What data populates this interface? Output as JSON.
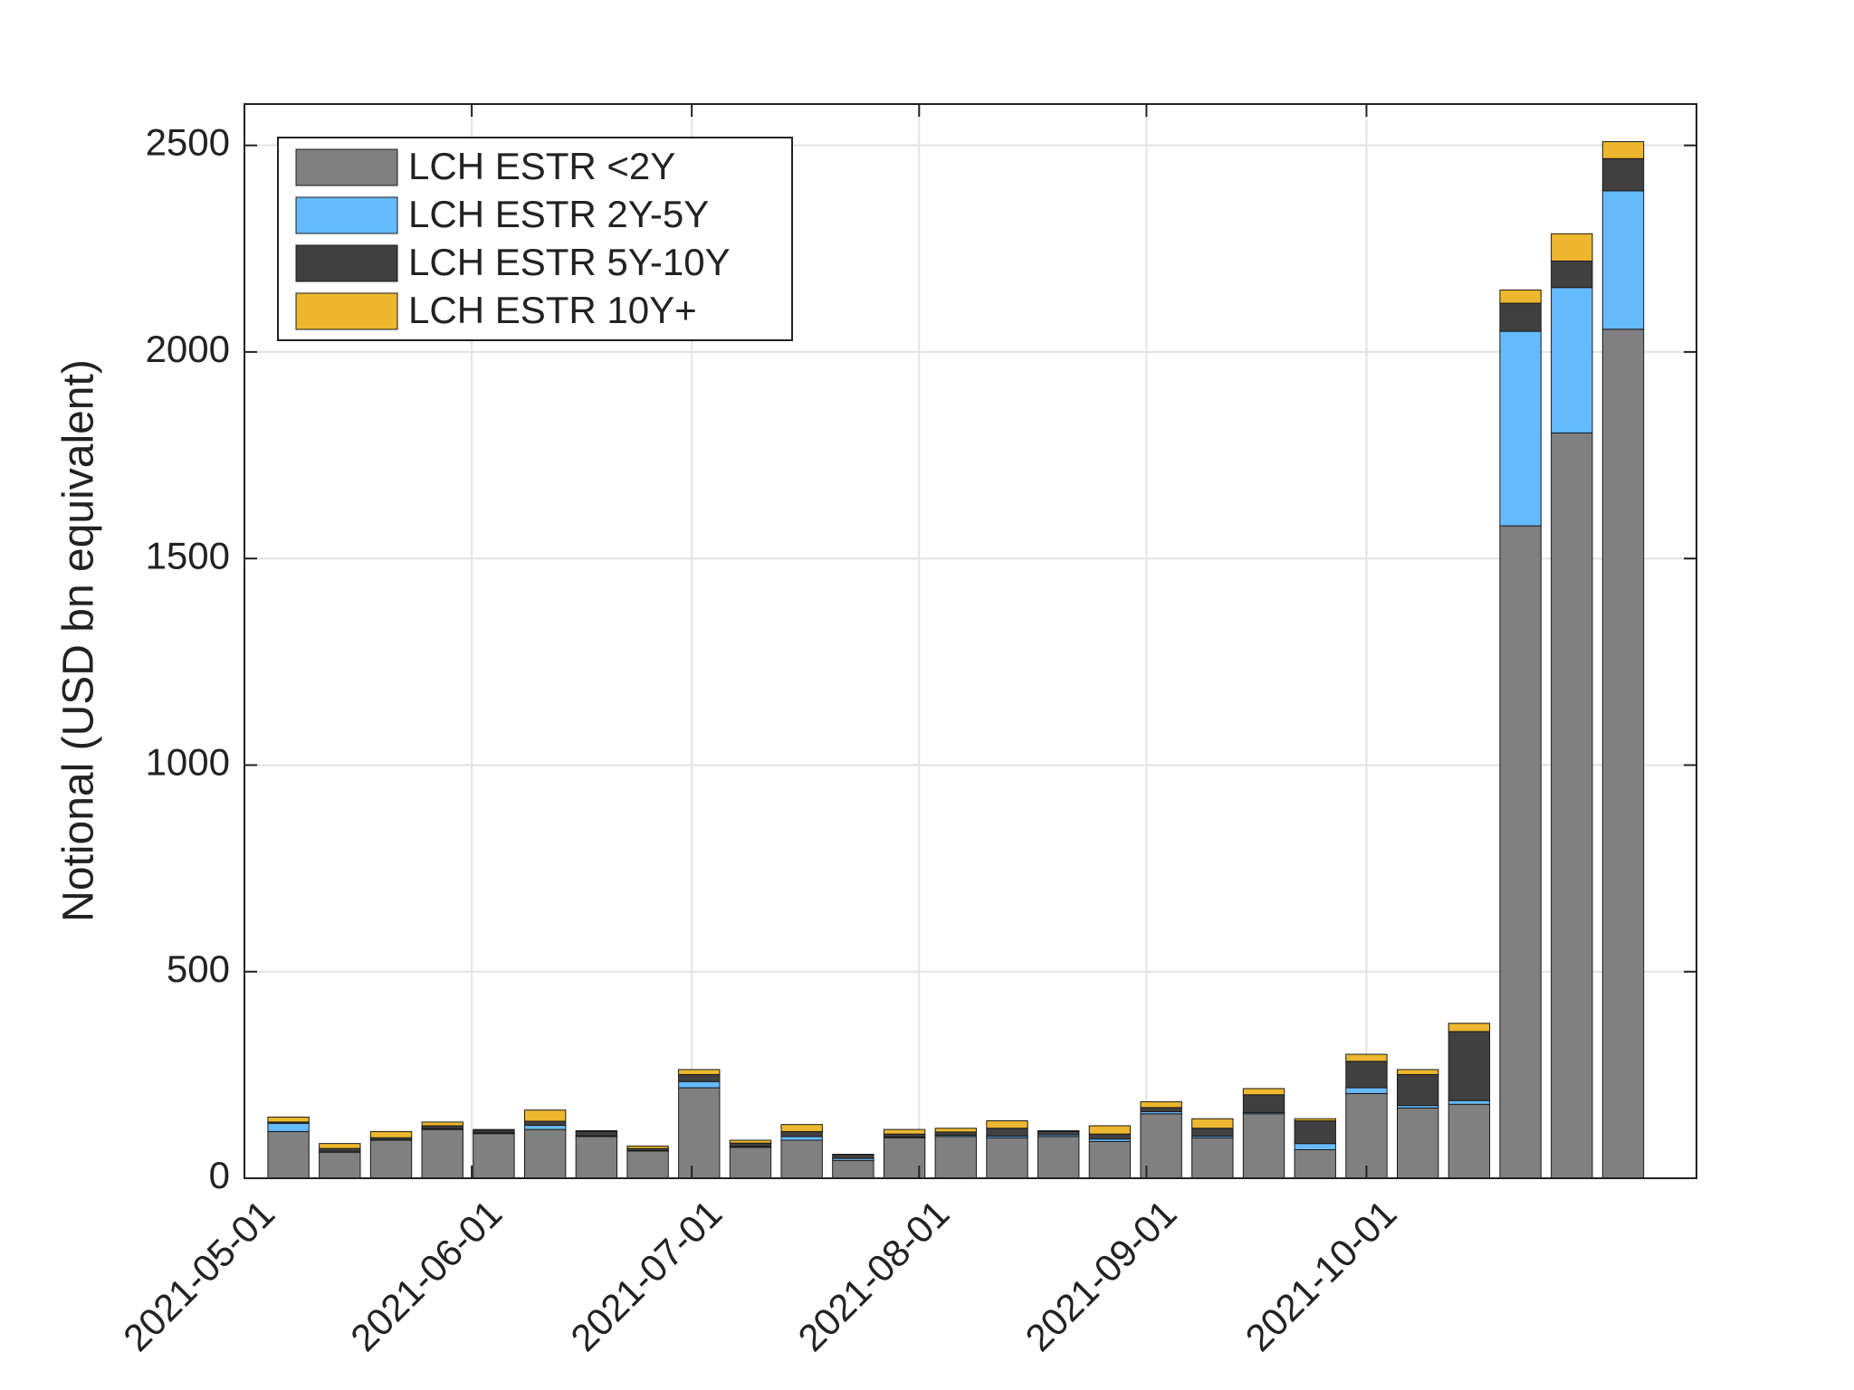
{
  "chart_data": {
    "type": "bar",
    "stacked": true,
    "y_label": "Notional (USD bn equivalent)",
    "x": [
      "2021-05-07",
      "2021-05-14",
      "2021-05-21",
      "2021-05-28",
      "2021-06-04",
      "2021-06-11",
      "2021-06-18",
      "2021-06-25",
      "2021-07-02",
      "2021-07-09",
      "2021-07-16",
      "2021-07-23",
      "2021-07-30",
      "2021-08-06",
      "2021-08-13",
      "2021-08-20",
      "2021-08-27",
      "2021-09-03",
      "2021-09-10",
      "2021-09-17",
      "2021-09-24",
      "2021-10-01",
      "2021-10-08",
      "2021-10-15",
      "2021-10-22",
      "2021-10-29",
      "2021-11-05"
    ],
    "series": [
      {
        "name": "LCH ESTR <2Y",
        "color": "#808080",
        "values": [
          113,
          63,
          92,
          118,
          108,
          118,
          101,
          66,
          219,
          75,
          92,
          43,
          98,
          101,
          98,
          101,
          89,
          156,
          98,
          156,
          69,
          205,
          170,
          179,
          1579,
          1804,
          2055
        ]
      },
      {
        "name": "LCH ESTR 2Y-5Y",
        "color": "#66bbff",
        "values": [
          20,
          1,
          1,
          2,
          2,
          10,
          2,
          1,
          15,
          2,
          9,
          5,
          2,
          3,
          4,
          4,
          6,
          5,
          4,
          3,
          15,
          14,
          6,
          9,
          471,
          352,
          335
        ]
      },
      {
        "name": "LCH ESTR 5Y-10Y",
        "color": "#404040",
        "values": [
          3,
          8,
          5,
          7,
          6,
          10,
          10,
          5,
          17,
          8,
          12,
          9,
          7,
          8,
          19,
          8,
          12,
          10,
          19,
          43,
          55,
          64,
          75,
          167,
          68,
          64,
          78
        ]
      },
      {
        "name": "LCH ESTR 10Y+",
        "color": "#edb82f",
        "values": [
          12,
          12,
          15,
          9,
          2,
          27,
          2,
          6,
          12,
          7,
          17,
          1,
          11,
          9,
          18,
          2,
          20,
          14,
          23,
          15,
          5,
          17,
          12,
          20,
          32,
          66,
          41
        ]
      }
    ],
    "xlim": [
      "2021-05-01",
      "2021-11-15"
    ],
    "xticks": [
      "2021-05-01",
      "2021-06-01",
      "2021-07-01",
      "2021-08-01",
      "2021-09-01",
      "2021-10-01"
    ],
    "ylim": [
      0,
      2600
    ],
    "yticks": [
      0,
      500,
      1000,
      1500,
      2000,
      2500
    ],
    "grid": true,
    "legend": "northwest"
  }
}
